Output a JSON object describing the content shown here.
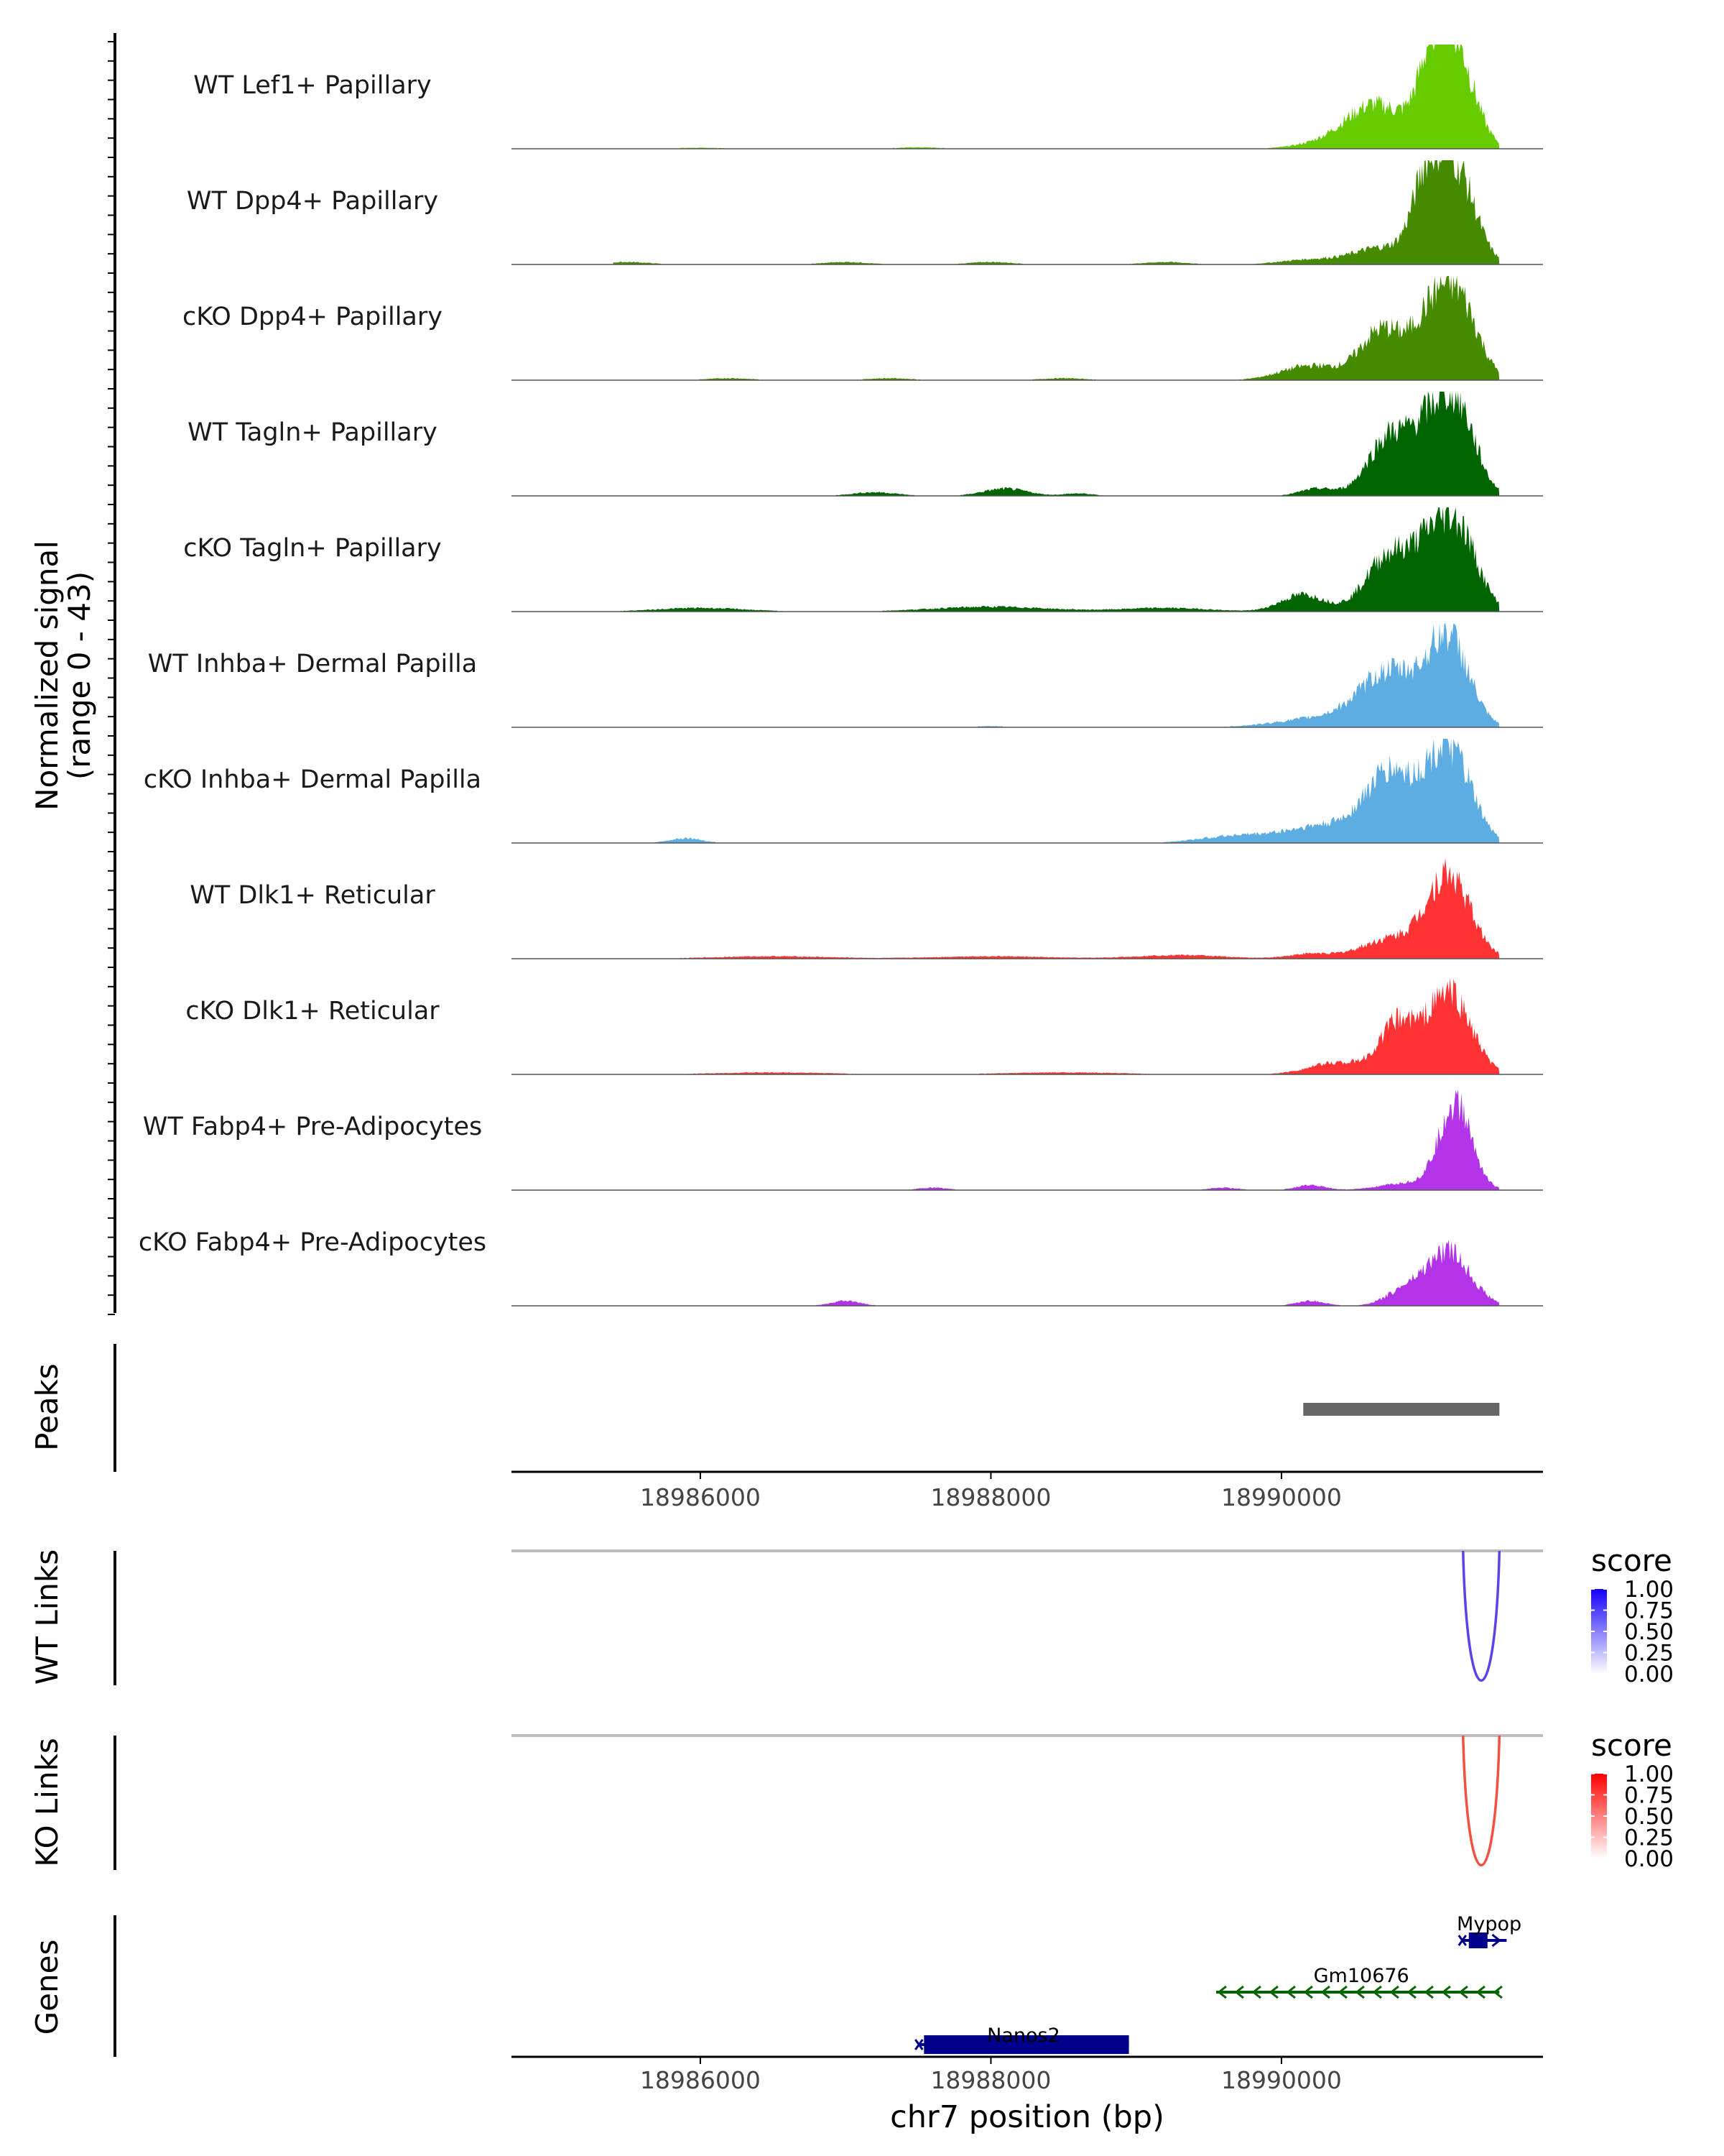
{
  "chart_data": {
    "type": "area",
    "title": "",
    "xlabel": "chr7 position (bp)",
    "ylabel": "Normalized signal",
    "ylabel_range": "(range 0 - 43)",
    "xlim": [
      18984700,
      18991800
    ],
    "ylim": [
      0,
      43
    ],
    "x_ticks": [
      18986000,
      18988000,
      18990000
    ],
    "x_tick_labels": [
      "18986000",
      "18988000",
      "18990000"
    ],
    "tracks": [
      {
        "name": "WT Lef1+ Papillary",
        "color": "#66CC00",
        "peaks": [
          [
            18991200,
            37,
            130
          ],
          [
            18991050,
            30,
            110
          ],
          [
            18990650,
            18,
            200
          ],
          [
            18990300,
            2,
            200
          ],
          [
            18987500,
            0.6,
            150
          ],
          [
            18986000,
            0.4,
            200
          ]
        ]
      },
      {
        "name": "WT Dpp4+ Papillary",
        "color": "#458B00",
        "peaks": [
          [
            18991200,
            39,
            130
          ],
          [
            18991000,
            30,
            100
          ],
          [
            18990700,
            7,
            200
          ],
          [
            18990200,
            2,
            200
          ],
          [
            18985500,
            1,
            150
          ],
          [
            18987000,
            1,
            150
          ],
          [
            18988000,
            1,
            150
          ],
          [
            18989200,
            1,
            150
          ]
        ]
      },
      {
        "name": "cKO Dpp4+ Papillary",
        "color": "#458B00",
        "peaks": [
          [
            18991200,
            36,
            140
          ],
          [
            18990700,
            21,
            150
          ],
          [
            18991000,
            16,
            110
          ],
          [
            18990200,
            6,
            200
          ],
          [
            18986200,
            0.8,
            150
          ],
          [
            18987300,
            0.8,
            150
          ],
          [
            18988500,
            0.8,
            150
          ]
        ]
      },
      {
        "name": "WT Tagln+ Papillary",
        "color": "#006400",
        "peaks": [
          [
            18991200,
            38,
            130
          ],
          [
            18990750,
            25,
            150
          ],
          [
            18991000,
            18,
            110
          ],
          [
            18990250,
            3,
            120
          ],
          [
            18988100,
            3,
            150
          ],
          [
            18987200,
            1.5,
            150
          ],
          [
            18988600,
            1,
            100
          ]
        ]
      },
      {
        "name": "cKO Tagln+ Papillary",
        "color": "#006400",
        "peaks": [
          [
            18991200,
            36,
            140
          ],
          [
            18990750,
            24,
            160
          ],
          [
            18991000,
            14,
            110
          ],
          [
            18990150,
            7,
            150
          ],
          [
            18988000,
            2,
            400
          ],
          [
            18986000,
            1.5,
            300
          ],
          [
            18989200,
            1.5,
            300
          ]
        ]
      },
      {
        "name": "WT Inhba+ Dermal Papilla",
        "color": "#5DADE2",
        "peaks": [
          [
            18991150,
            36,
            140
          ],
          [
            18990750,
            22,
            200
          ],
          [
            18990300,
            4,
            300
          ],
          [
            18985000,
            0.5,
            100
          ],
          [
            18988000,
            0.5,
            100
          ]
        ]
      },
      {
        "name": "cKO Inhba+ Dermal Papilla",
        "color": "#5DADE2",
        "peaks": [
          [
            18991150,
            39,
            150
          ],
          [
            18990750,
            28,
            170
          ],
          [
            18990300,
            7,
            250
          ],
          [
            18989700,
            3,
            250
          ],
          [
            18985900,
            2,
            110
          ]
        ]
      },
      {
        "name": "WT Dlk1+ Reticular",
        "color": "#FF3333",
        "peaks": [
          [
            18991150,
            34,
            150
          ],
          [
            18990750,
            8,
            200
          ],
          [
            18990200,
            2,
            150
          ],
          [
            18986500,
            1,
            400
          ],
          [
            18988000,
            1,
            400
          ],
          [
            18989300,
            1.5,
            300
          ]
        ]
      },
      {
        "name": "cKO Dlk1+ Reticular",
        "color": "#FF3333",
        "peaks": [
          [
            18991150,
            34,
            150
          ],
          [
            18990800,
            20,
            120
          ],
          [
            18990400,
            5,
            200
          ],
          [
            18986500,
            0.8,
            400
          ],
          [
            18988500,
            0.8,
            400
          ]
        ]
      },
      {
        "name": "WT Fabp4+ Pre-Adipocytes",
        "color": "#B233E8",
        "peaks": [
          [
            18991200,
            35,
            110
          ],
          [
            18990900,
            3,
            200
          ],
          [
            18990200,
            2,
            100
          ],
          [
            18989600,
            1,
            100
          ],
          [
            18987600,
            1,
            100
          ]
        ]
      },
      {
        "name": "cKO Fabp4+ Pre-Adipocytes",
        "color": "#B233E8",
        "peaks": [
          [
            18991150,
            22,
            150
          ],
          [
            18990850,
            6,
            130
          ],
          [
            18990200,
            2,
            100
          ],
          [
            18987000,
            2,
            100
          ]
        ]
      }
    ],
    "peaks_panel": {
      "label": "Peaks",
      "regions": [
        [
          18990150,
          18991500
        ]
      ],
      "color": "#666666"
    },
    "links_panels": [
      {
        "label": "WT Links",
        "legend_title": "score",
        "color_low": "#FFFFFF",
        "color_high": "#1400FF",
        "legend_ticks": [
          "1.00",
          "0.75",
          "0.50",
          "0.25",
          "0.00"
        ],
        "links": [
          {
            "start": 18991250,
            "end": 18991500,
            "score": 0.7,
            "color": "#6040E8"
          }
        ]
      },
      {
        "label": "KO Links",
        "legend_title": "score",
        "color_low": "#FFFFFF",
        "color_high": "#FF0000",
        "legend_ticks": [
          "1.00",
          "0.75",
          "0.50",
          "0.25",
          "0.00"
        ],
        "links": [
          {
            "start": 18991250,
            "end": 18991500,
            "score": 0.7,
            "color": "#F25040"
          }
        ]
      }
    ],
    "genes_panel": {
      "label": "Genes",
      "genes": [
        {
          "name": "Mypop",
          "start": 18991250,
          "end": 18991550,
          "strand": "+",
          "color": "#00008B",
          "row": 0
        },
        {
          "name": "Gm10676",
          "start": 18989550,
          "end": 18991500,
          "strand": "-",
          "color": "#006400",
          "row": 1
        },
        {
          "name": "Nanos2",
          "start": 18987500,
          "end": 18988950,
          "strand": "+",
          "color": "#00008B",
          "row": 2
        }
      ]
    }
  }
}
